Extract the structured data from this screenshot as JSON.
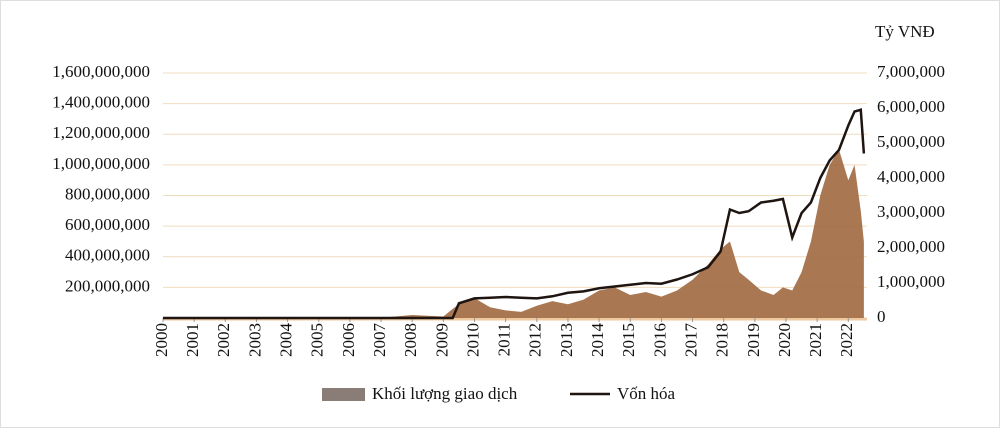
{
  "chart_data": {
    "type": "line",
    "y2_title": "Tỷ VNĐ",
    "x": [
      2000,
      2004,
      2007,
      2008,
      2008.5,
      2009,
      2009.3,
      2009.5,
      2010,
      2010.5,
      2011,
      2011.5,
      2012,
      2012.5,
      2013,
      2013.5,
      2014,
      2014.5,
      2015,
      2015.5,
      2016,
      2016.5,
      2017,
      2017.5,
      2017.9,
      2018.2,
      2018.5,
      2018.8,
      2019.2,
      2019.6,
      2019.9,
      2020.2,
      2020.5,
      2020.8,
      2021.1,
      2021.4,
      2021.7,
      2022,
      2022.2,
      2022.4,
      2022.5
    ],
    "series": [
      {
        "name": "Khối lượng giao dịch",
        "color": "#a0693f",
        "legend_color": "#8a7c76",
        "kind": "area",
        "axis": "y",
        "values": [
          0,
          0,
          2000000,
          20000000,
          15000000,
          10000000,
          60000000,
          90000000,
          130000000,
          70000000,
          50000000,
          40000000,
          80000000,
          110000000,
          90000000,
          120000000,
          180000000,
          200000000,
          150000000,
          170000000,
          140000000,
          180000000,
          250000000,
          350000000,
          450000000,
          500000000,
          300000000,
          250000000,
          180000000,
          150000000,
          200000000,
          180000000,
          300000000,
          500000000,
          800000000,
          1000000000,
          1100000000,
          900000000,
          1000000000,
          700000000,
          500000000
        ]
      },
      {
        "name": "Vốn hóa",
        "color": "#1e1410",
        "kind": "line",
        "axis": "y2",
        "values": [
          0,
          0,
          0,
          0,
          0,
          0,
          0,
          420000,
          560000,
          580000,
          600000,
          580000,
          560000,
          620000,
          720000,
          760000,
          850000,
          900000,
          950000,
          1000000,
          980000,
          1100000,
          1250000,
          1450000,
          1900000,
          3100000,
          3000000,
          3050000,
          3300000,
          3350000,
          3400000,
          2300000,
          3000000,
          3300000,
          4000000,
          4500000,
          4800000,
          5500000,
          5900000,
          5950000,
          4700000
        ]
      }
    ],
    "xlim": [
      2000,
      2022.6
    ],
    "xticks": [
      2000,
      2001,
      2002,
      2003,
      2004,
      2005,
      2006,
      2007,
      2008,
      2009,
      2010,
      2011,
      2012,
      2013,
      2014,
      2015,
      2016,
      2017,
      2018,
      2019,
      2020,
      2021,
      2022
    ],
    "ylim": [
      0,
      1600000000
    ],
    "yticks": [
      {
        "value": 200000000,
        "label": "200,000,000"
      },
      {
        "value": 400000000,
        "label": "400,000,000"
      },
      {
        "value": 600000000,
        "label": "600,000,000"
      },
      {
        "value": 800000000,
        "label": "800,000,000"
      },
      {
        "value": 1000000000,
        "label": "1,000,000,000"
      },
      {
        "value": 1200000000,
        "label": "1,200,000,000"
      },
      {
        "value": 1400000000,
        "label": "1,400,000,000"
      },
      {
        "value": 1600000000,
        "label": "1,600,000,000"
      }
    ],
    "y2lim": [
      0,
      7000000
    ],
    "y2ticks": [
      0,
      {
        "value": 1000000,
        "label": "1,000,000"
      },
      {
        "value": 2000000,
        "label": "2,000,000"
      },
      {
        "value": 3000000,
        "label": "3,000,000"
      },
      {
        "value": 4000000,
        "label": "4,000,000"
      },
      {
        "value": 5000000,
        "label": "5,000,000"
      },
      {
        "value": 6000000,
        "label": "6,000,000"
      },
      {
        "value": 7000000,
        "label": "7,000,000"
      }
    ],
    "grid": true
  }
}
